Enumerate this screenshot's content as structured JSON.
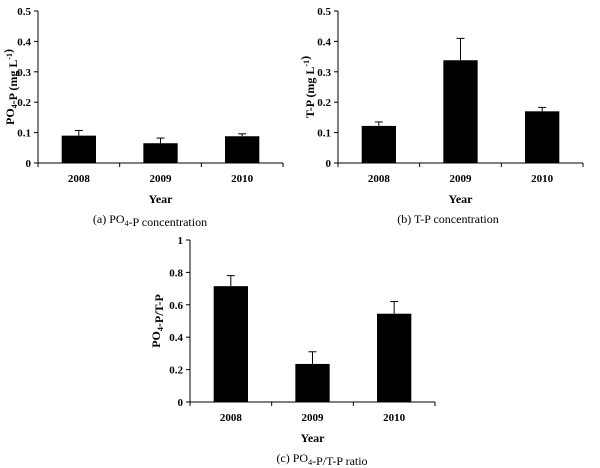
{
  "chart_data": [
    {
      "type": "bar",
      "panel": "a",
      "caption": "(a)  PO₄-P  concentration",
      "xlabel": "Year",
      "ylabel": "PO₄-P (mg L⁻¹)",
      "categories": [
        "2008",
        "2009",
        "2010"
      ],
      "values": [
        0.09,
        0.065,
        0.088
      ],
      "errors": [
        0.017,
        0.017,
        0.008
      ],
      "ylim": [
        0,
        0.5
      ],
      "yticks": [
        "0",
        "0.1",
        "0.2",
        "0.3",
        "0.4",
        "0.5"
      ],
      "bar_color": "#000000",
      "grid": false
    },
    {
      "type": "bar",
      "panel": "b",
      "caption": "(b)  T-P  concentration",
      "xlabel": "Year",
      "ylabel": "T-P (mg L⁻¹)",
      "categories": [
        "2008",
        "2009",
        "2010"
      ],
      "values": [
        0.122,
        0.338,
        0.17
      ],
      "errors": [
        0.013,
        0.072,
        0.013
      ],
      "ylim": [
        0,
        0.5
      ],
      "yticks": [
        "0",
        "0.1",
        "0.2",
        "0.3",
        "0.4",
        "0.5"
      ],
      "bar_color": "#000000",
      "grid": false
    },
    {
      "type": "bar",
      "panel": "c",
      "caption": "(c)  PO₄-P/T-P  ratio",
      "xlabel": "Year",
      "ylabel": "PO₄-P/T-P",
      "categories": [
        "2008",
        "2009",
        "2010"
      ],
      "values": [
        0.715,
        0.235,
        0.545
      ],
      "errors": [
        0.065,
        0.075,
        0.075
      ],
      "ylim": [
        0,
        1
      ],
      "yticks": [
        "0",
        "0.2",
        "0.4",
        "0.6",
        "0.8",
        "1"
      ],
      "bar_color": "#000000",
      "grid": false
    }
  ]
}
